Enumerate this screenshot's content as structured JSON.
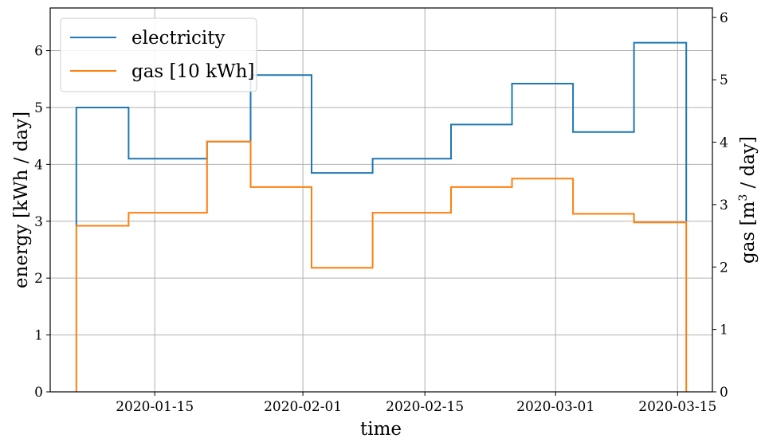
{
  "chart_data": {
    "type": "line",
    "step": "post",
    "xlabel": "time",
    "ylabel": "energy [kWh / day]",
    "ylabel_right_prefix": "gas [m",
    "ylabel_right_sup": "3",
    "ylabel_right_suffix": " / day]",
    "xlim": [
      "2020-01-03",
      "2020-03-19"
    ],
    "ylim": [
      0,
      6.75
    ],
    "ylim_right": [
      0,
      6.15
    ],
    "yticks": [
      0,
      1,
      2,
      3,
      4,
      5,
      6
    ],
    "yticks_right": [
      0,
      1,
      2,
      3,
      4,
      5,
      6
    ],
    "xticks": [
      "2020-01-15",
      "2020-02-01",
      "2020-02-15",
      "2020-03-01",
      "2020-03-15"
    ],
    "grid": true,
    "legend_position": "top-left",
    "series": [
      {
        "name": "electricity",
        "color": "#1f77b4",
        "axis": "left",
        "start": "2020-01-06",
        "start_value": 2.9,
        "end": "2020-03-16",
        "end_value": 3.0,
        "x": [
          "2020-01-06",
          "2020-01-12",
          "2020-01-21",
          "2020-01-26",
          "2020-02-02",
          "2020-02-09",
          "2020-02-18",
          "2020-02-25",
          "2020-03-03",
          "2020-03-10"
        ],
        "values": [
          5.0,
          4.1,
          4.4,
          5.57,
          3.85,
          4.1,
          4.7,
          5.42,
          4.57,
          6.14
        ]
      },
      {
        "name": "gas [10 kWh]",
        "color": "#ff7f0e",
        "axis": "left",
        "start": "2020-01-06",
        "start_value": 0,
        "end": "2020-03-16",
        "end_value": 0,
        "x": [
          "2020-01-06",
          "2020-01-12",
          "2020-01-21",
          "2020-01-26",
          "2020-02-02",
          "2020-02-09",
          "2020-02-18",
          "2020-02-25",
          "2020-03-03",
          "2020-03-10"
        ],
        "values": [
          2.92,
          3.15,
          4.4,
          3.6,
          2.18,
          3.15,
          3.6,
          3.75,
          3.13,
          2.98
        ]
      }
    ]
  }
}
